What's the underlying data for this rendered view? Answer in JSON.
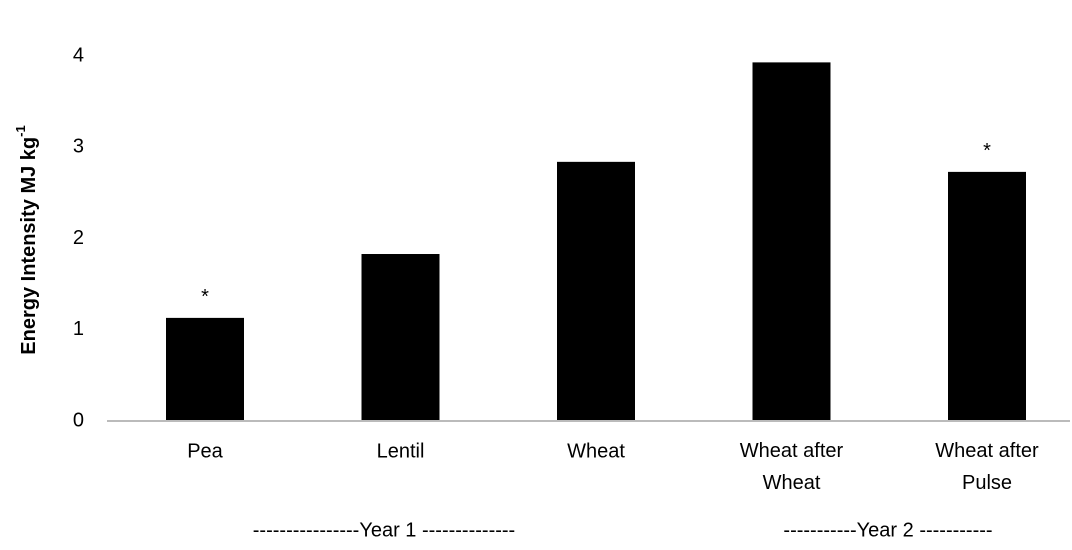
{
  "chart_data": {
    "type": "bar",
    "ylabel": {
      "text": "Energy Intensity MJ kg",
      "superscript": "-1"
    },
    "categories": [
      "Pea",
      "Lentil",
      "Wheat",
      "Wheat after\nWheat",
      "Wheat after\nPulse"
    ],
    "values": [
      1.13,
      1.83,
      2.84,
      3.93,
      2.73
    ],
    "color": "#000000",
    "ylim": [
      0,
      4
    ],
    "yticks": [
      0,
      1,
      2,
      3,
      4
    ],
    "grid": false,
    "annotations": [
      {
        "text": "*",
        "category": "Pea"
      },
      {
        "text": "*",
        "category": "Wheat after\nPulse"
      }
    ],
    "groups": [
      "----------------Year 1 --------------",
      "-----------Year 2 -----------"
    ]
  }
}
